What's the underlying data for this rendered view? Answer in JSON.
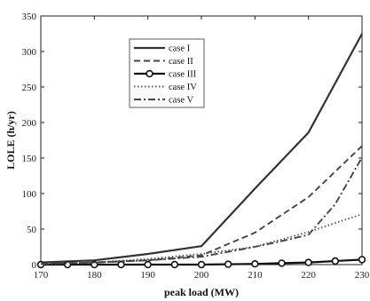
{
  "chart_data": {
    "type": "line",
    "xlabel": "peak load (MW)",
    "ylabel": "LOLE (h/yr)",
    "xlim": [
      170,
      230
    ],
    "ylim": [
      0,
      350
    ],
    "x_ticks": [
      170,
      180,
      190,
      200,
      210,
      220,
      230
    ],
    "y_ticks": [
      0,
      50,
      100,
      150,
      200,
      250,
      300,
      350
    ],
    "grid": false,
    "legend_position": "upper-left-inside",
    "series": [
      {
        "name": "case I",
        "style": "solid",
        "color": "#333333",
        "x": [
          170,
          180,
          190,
          200,
          210,
          220,
          230
        ],
        "y": [
          3,
          6,
          15,
          26,
          107,
          186,
          325
        ]
      },
      {
        "name": "case II",
        "style": "dashed",
        "color": "#444444",
        "x": [
          170,
          180,
          190,
          200,
          210,
          220,
          230
        ],
        "y": [
          1,
          3,
          6,
          13,
          45,
          95,
          167
        ]
      },
      {
        "name": "case III",
        "style": "solid-circle",
        "color": "#111111",
        "x": [
          170,
          175,
          180,
          185,
          190,
          195,
          200,
          205,
          210,
          215,
          220,
          225,
          230
        ],
        "y": [
          0,
          0,
          0,
          0,
          0,
          0,
          0,
          0.5,
          1,
          2,
          3,
          5,
          7
        ]
      },
      {
        "name": "case IV",
        "style": "dotted",
        "color": "#555555",
        "x": [
          170,
          180,
          190,
          200,
          210,
          220,
          230
        ],
        "y": [
          1,
          3,
          8,
          15,
          25,
          46,
          71
        ]
      },
      {
        "name": "case V",
        "style": "dashdot",
        "color": "#444444",
        "x": [
          170,
          180,
          190,
          200,
          210,
          215,
          220,
          225,
          230
        ],
        "y": [
          1,
          3,
          6,
          11,
          25,
          33,
          42,
          85,
          151
        ]
      }
    ]
  }
}
